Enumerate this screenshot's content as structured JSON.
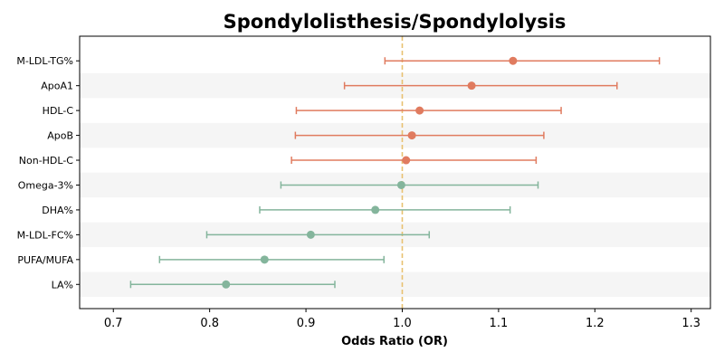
{
  "chart_data": {
    "type": "forest",
    "title": "Spondylolisthesis/Spondylolysis",
    "xlabel": "Odds Ratio (OR)",
    "ylabel": "",
    "xlim": [
      0.665,
      1.32
    ],
    "xticks": [
      0.7,
      0.8,
      0.9,
      1.0,
      1.1,
      1.2,
      1.3
    ],
    "xtick_labels": [
      "0.7",
      "0.8",
      "0.9",
      "1.0",
      "1.1",
      "1.2",
      "1.3"
    ],
    "reference_line": 1.0,
    "grid": false,
    "legend": "none",
    "colors": {
      "positive": "#E07B5F",
      "negative": "#84B59C",
      "reference_line": "#E8C170",
      "band": "#F5F5F5"
    },
    "rows": [
      {
        "label": "M-LDL-TG%",
        "or": 1.115,
        "lower": 0.982,
        "upper": 1.267,
        "group": "positive"
      },
      {
        "label": "ApoA1",
        "or": 1.072,
        "lower": 0.94,
        "upper": 1.223,
        "group": "positive"
      },
      {
        "label": "HDL-C",
        "or": 1.018,
        "lower": 0.89,
        "upper": 1.165,
        "group": "positive"
      },
      {
        "label": "ApoB",
        "or": 1.01,
        "lower": 0.889,
        "upper": 1.147,
        "group": "positive"
      },
      {
        "label": "Non-HDL-C",
        "or": 1.004,
        "lower": 0.885,
        "upper": 1.139,
        "group": "positive"
      },
      {
        "label": "Omega-3%",
        "or": 0.999,
        "lower": 0.874,
        "upper": 1.141,
        "group": "negative"
      },
      {
        "label": "DHA%",
        "or": 0.972,
        "lower": 0.852,
        "upper": 1.112,
        "group": "negative"
      },
      {
        "label": "M-LDL-FC%",
        "or": 0.905,
        "lower": 0.797,
        "upper": 1.028,
        "group": "negative"
      },
      {
        "label": "PUFA/MUFA",
        "or": 0.857,
        "lower": 0.748,
        "upper": 0.981,
        "group": "negative"
      },
      {
        "label": "LA%",
        "or": 0.817,
        "lower": 0.718,
        "upper": 0.93,
        "group": "negative"
      }
    ]
  }
}
